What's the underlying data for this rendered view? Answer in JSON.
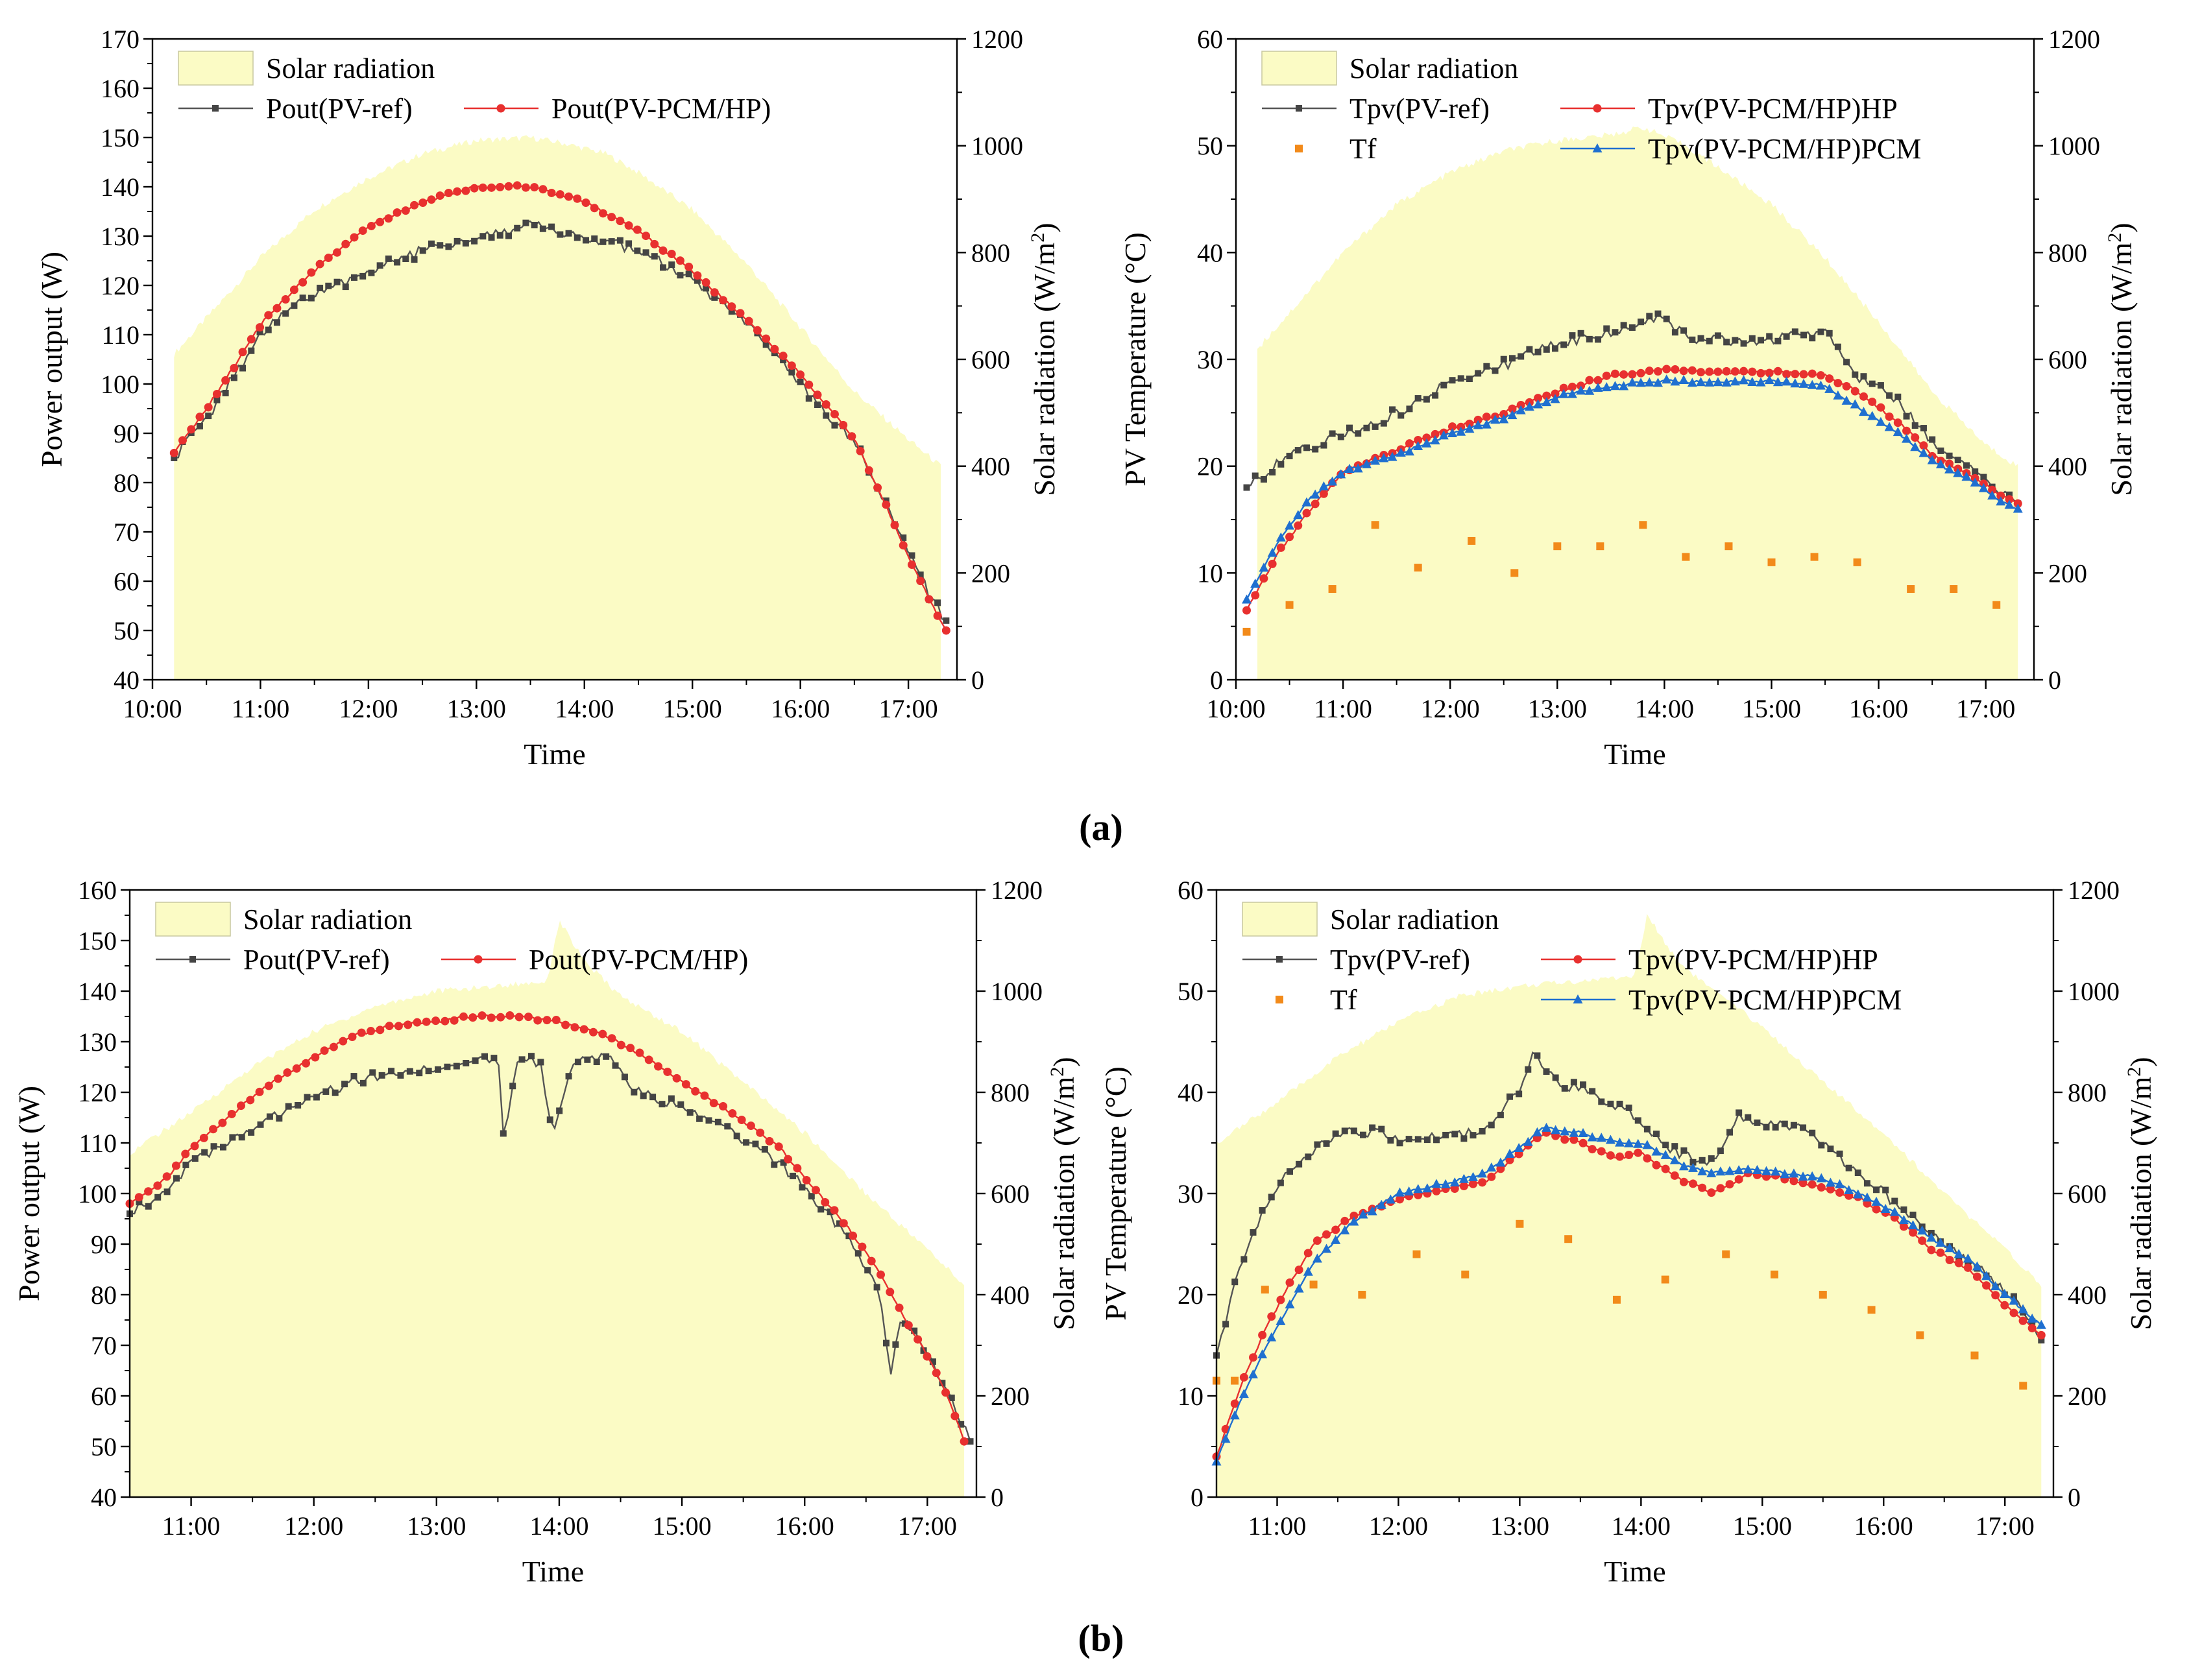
{
  "figure": {
    "panel_labels": [
      "(a)",
      "(b)"
    ]
  },
  "colors": {
    "radiation_fill": "#fbfbc5",
    "ref_line": "#555555",
    "ref_marker": "#444444",
    "hp_line": "#e8302f",
    "pcm_line": "#1f6fd0",
    "tf_marker": "#f28a1a"
  },
  "chart_data": [
    {
      "id": "a-left",
      "type": "line",
      "panel": "(a)",
      "xlabel": "Time",
      "ylabel": "Power output (W)",
      "ylabel_right": "Solar radiation (W/m2)",
      "xlim": [
        10.0,
        17.45
      ],
      "xticks": [
        "10:00",
        "11:00",
        "12:00",
        "13:00",
        "14:00",
        "15:00",
        "16:00",
        "17:00"
      ],
      "ylim": [
        40,
        170
      ],
      "yticks": [
        40,
        50,
        60,
        70,
        80,
        90,
        100,
        110,
        120,
        130,
        140,
        150,
        160,
        170
      ],
      "ylim_right": [
        0,
        1200
      ],
      "yticks_right": [
        0,
        200,
        400,
        600,
        800,
        1000,
        1200
      ],
      "radiation": {
        "name": "Solar radiation",
        "x": [
          10.2,
          10.6,
          11.0,
          11.5,
          12.0,
          12.5,
          13.0,
          13.5,
          13.8,
          14.2,
          14.5,
          15.0,
          15.5,
          16.0,
          16.5,
          17.0,
          17.3
        ],
        "values": [
          610,
          700,
          790,
          880,
          940,
          985,
          1010,
          1015,
          1005,
          985,
          950,
          880,
          780,
          660,
          540,
          450,
          400
        ]
      },
      "series": [
        {
          "name": "Pout(PV-ref)",
          "style": "ref",
          "x": [
            10.2,
            10.5,
            10.8,
            11.0,
            11.3,
            11.6,
            12.0,
            12.5,
            13.0,
            13.5,
            14.0,
            14.5,
            15.0,
            15.5,
            16.0,
            16.5,
            16.8,
            17.0,
            17.2,
            17.35
          ],
          "values": [
            85,
            93,
            103,
            110,
            116,
            119,
            123,
            127,
            130,
            132,
            130,
            127,
            121,
            112,
            100,
            88,
            76,
            66,
            57,
            52
          ]
        },
        {
          "name": "Pout(PV-PCM/HP)",
          "style": "hp",
          "x": [
            10.2,
            10.5,
            10.8,
            11.0,
            11.3,
            11.6,
            12.0,
            12.5,
            13.0,
            13.5,
            14.0,
            14.5,
            15.0,
            15.5,
            16.0,
            16.5,
            16.8,
            17.0,
            17.2,
            17.35
          ],
          "values": [
            86,
            95,
            105,
            112,
            119,
            125,
            132,
            137,
            140,
            140,
            137,
            131,
            123,
            113,
            102,
            89,
            75,
            65,
            56,
            50
          ]
        }
      ]
    },
    {
      "id": "a-right",
      "type": "line",
      "panel": "(a)",
      "xlabel": "Time",
      "ylabel": "PV Temperature (°C)",
      "ylabel_right": "Solar radiation (W/m2)",
      "xlim": [
        10.0,
        17.45
      ],
      "xticks": [
        "10:00",
        "11:00",
        "12:00",
        "13:00",
        "14:00",
        "15:00",
        "16:00",
        "17:00"
      ],
      "ylim": [
        0,
        60
      ],
      "yticks": [
        0,
        10,
        20,
        30,
        40,
        50,
        60
      ],
      "ylim_right": [
        0,
        1200
      ],
      "yticks_right": [
        0,
        200,
        400,
        600,
        800,
        1000,
        1200
      ],
      "radiation": {
        "name": "Solar radiation",
        "x": [
          10.2,
          10.6,
          11.0,
          11.5,
          12.0,
          12.5,
          13.0,
          13.5,
          13.8,
          14.2,
          14.5,
          15.0,
          15.5,
          16.0,
          16.5,
          17.0,
          17.3
        ],
        "values": [
          620,
          710,
          800,
          890,
          950,
          990,
          1010,
          1020,
          1035,
          1000,
          960,
          890,
          790,
          670,
          540,
          440,
          400
        ]
      },
      "series": [
        {
          "name": "Tpv(PV-ref)",
          "style": "ref",
          "x": [
            10.1,
            10.5,
            11.0,
            11.5,
            12.0,
            12.5,
            13.0,
            13.5,
            13.9,
            14.3,
            14.7,
            15.1,
            15.5,
            15.8,
            16.2,
            16.5,
            16.8,
            17.1,
            17.3
          ],
          "values": [
            18,
            21,
            23,
            25,
            28,
            29.5,
            31.5,
            32.5,
            34,
            32,
            31.5,
            32,
            32.5,
            28.5,
            26,
            22,
            20,
            18,
            16.5
          ]
        },
        {
          "name": "Tpv(PV-PCM/HP)HP",
          "style": "hp",
          "x": [
            10.1,
            10.4,
            10.7,
            11.0,
            11.5,
            12.0,
            12.5,
            13.0,
            13.5,
            14.0,
            14.5,
            15.0,
            15.5,
            15.8,
            16.2,
            16.5,
            16.8,
            17.1,
            17.3
          ],
          "values": [
            6.5,
            12,
            16,
            19.5,
            21.5,
            23.5,
            25,
            27,
            28.5,
            29,
            28.8,
            28.8,
            28.5,
            27,
            24,
            21,
            19.5,
            17.5,
            16.5
          ]
        },
        {
          "name": "Tpv(PV-PCM/HP)PCM",
          "style": "pcm",
          "x": [
            10.1,
            10.4,
            10.7,
            11.0,
            11.5,
            12.0,
            12.5,
            13.0,
            13.5,
            14.0,
            14.5,
            15.0,
            15.5,
            15.8,
            16.2,
            16.5,
            16.8,
            17.1,
            17.3
          ],
          "values": [
            7.5,
            13,
            17,
            19.5,
            21,
            23,
            24.5,
            26.5,
            27.5,
            28,
            27.8,
            28,
            27.5,
            25.5,
            23,
            20.5,
            19,
            17,
            16
          ]
        },
        {
          "name": "Tf",
          "style": "tf",
          "x": [
            10.1,
            10.5,
            10.9,
            11.3,
            11.7,
            12.2,
            12.6,
            13.0,
            13.4,
            13.8,
            14.2,
            14.6,
            15.0,
            15.4,
            15.8,
            16.3,
            16.7,
            17.1
          ],
          "values": [
            4.5,
            7,
            8.5,
            14.5,
            10.5,
            13,
            10,
            12.5,
            12.5,
            14.5,
            11.5,
            12.5,
            11,
            11.5,
            11,
            8.5,
            8.5,
            7
          ]
        }
      ]
    },
    {
      "id": "b-left",
      "type": "line",
      "panel": "(b)",
      "xlabel": "Time",
      "ylabel": "Power output (W)",
      "ylabel_right": "Solar radiation (W/m2)",
      "xlim": [
        10.5,
        17.4
      ],
      "xticks": [
        "11:00",
        "12:00",
        "13:00",
        "14:00",
        "15:00",
        "16:00",
        "17:00"
      ],
      "ylim": [
        40,
        160
      ],
      "yticks": [
        40,
        50,
        60,
        70,
        80,
        90,
        100,
        110,
        120,
        130,
        140,
        150,
        160
      ],
      "ylim_right": [
        0,
        1200
      ],
      "yticks_right": [
        0,
        200,
        400,
        600,
        800,
        1000,
        1200
      ],
      "radiation": {
        "name": "Solar radiation",
        "x": [
          10.5,
          11.0,
          11.5,
          12.0,
          12.5,
          13.0,
          13.5,
          13.9,
          14.0,
          14.2,
          14.5,
          15.0,
          15.5,
          16.0,
          16.5,
          17.0,
          17.3
        ],
        "values": [
          680,
          760,
          850,
          920,
          970,
          1000,
          1010,
          1020,
          1140,
          1060,
          990,
          920,
          820,
          720,
          600,
          490,
          420
        ]
      },
      "series": [
        {
          "name": "Pout(PV-ref)",
          "style": "ref",
          "x": [
            10.5,
            10.8,
            11.0,
            11.3,
            11.6,
            12.0,
            12.3,
            12.6,
            13.0,
            13.3,
            13.5,
            13.55,
            13.65,
            13.85,
            13.95,
            14.1,
            14.4,
            14.6,
            15.0,
            15.4,
            15.8,
            16.0,
            16.3,
            16.6,
            16.7,
            16.8,
            17.0,
            17.2,
            17.35
          ],
          "values": [
            96,
            101,
            106,
            110,
            114,
            119,
            122,
            124,
            125,
            126,
            127,
            109,
            127,
            126,
            111,
            126,
            127,
            121,
            117,
            112,
            106,
            101,
            93,
            82,
            65,
            76,
            68,
            59,
            51
          ]
        },
        {
          "name": "Pout(PV-PCM/HP)",
          "style": "hp",
          "x": [
            10.5,
            10.8,
            11.0,
            11.3,
            11.6,
            12.0,
            12.3,
            12.6,
            13.0,
            13.3,
            13.6,
            14.0,
            14.4,
            14.7,
            15.0,
            15.4,
            15.8,
            16.0,
            16.3,
            16.6,
            16.8,
            17.0,
            17.2,
            17.3
          ],
          "values": [
            98,
            103,
            109,
            115,
            121,
            127,
            131,
            133,
            134,
            135,
            135,
            134,
            131,
            127,
            122,
            116,
            109,
            103,
            95,
            85,
            76,
            68,
            58,
            51
          ]
        }
      ]
    },
    {
      "id": "b-right",
      "type": "line",
      "panel": "(b)",
      "xlabel": "Time",
      "ylabel": "PV Temperature (°C)",
      "ylabel_right": "Solar radiation (W/m2)",
      "xlim": [
        10.5,
        17.4
      ],
      "xticks": [
        "11:00",
        "12:00",
        "13:00",
        "14:00",
        "15:00",
        "16:00",
        "17:00"
      ],
      "ylim": [
        0,
        60
      ],
      "yticks": [
        0,
        10,
        20,
        30,
        40,
        50,
        60
      ],
      "ylim_right": [
        0,
        1200
      ],
      "yticks_right": [
        0,
        200,
        400,
        600,
        800,
        1000,
        1200
      ],
      "radiation": {
        "name": "Solar radiation",
        "x": [
          10.5,
          11.0,
          11.5,
          12.0,
          12.5,
          13.0,
          13.5,
          13.95,
          14.05,
          14.3,
          14.6,
          15.0,
          15.5,
          16.0,
          16.5,
          17.0,
          17.3
        ],
        "values": [
          700,
          780,
          870,
          940,
          990,
          1010,
          1020,
          1030,
          1150,
          1060,
          1000,
          930,
          820,
          720,
          600,
          490,
          420
        ]
      },
      "series": [
        {
          "name": "Tpv(PV-ref)",
          "style": "ref",
          "x": [
            10.5,
            10.7,
            10.9,
            11.2,
            11.5,
            11.8,
            12.0,
            12.4,
            12.7,
            13.0,
            13.1,
            13.3,
            13.6,
            13.9,
            14.1,
            14.3,
            14.6,
            14.8,
            15.0,
            15.3,
            15.6,
            15.9,
            16.2,
            16.5,
            16.8,
            17.1,
            17.3
          ],
          "values": [
            14,
            23,
            29,
            33.5,
            36,
            36,
            35.5,
            35.5,
            36.5,
            40,
            44,
            41,
            40,
            38,
            36,
            34,
            33,
            37.5,
            37,
            36.5,
            34,
            31,
            28,
            25,
            22.5,
            19,
            15.5
          ]
        },
        {
          "name": "Tpv(PV-PCM/HP)HP",
          "style": "hp",
          "x": [
            10.5,
            10.7,
            10.9,
            11.1,
            11.3,
            11.6,
            12.0,
            12.4,
            12.7,
            13.0,
            13.2,
            13.5,
            13.8,
            14.0,
            14.3,
            14.6,
            14.9,
            15.2,
            15.5,
            15.8,
            16.1,
            16.4,
            16.7,
            17.0,
            17.3
          ],
          "values": [
            4,
            11,
            16.5,
            21,
            25,
            27.5,
            29.5,
            30.5,
            31,
            34,
            36,
            35,
            33.5,
            34,
            31.5,
            30,
            32,
            31.5,
            30.5,
            29.5,
            27.5,
            24.5,
            22.5,
            19,
            16
          ]
        },
        {
          "name": "Tpv(PV-PCM/HP)PCM",
          "style": "pcm",
          "x": [
            10.5,
            10.7,
            10.9,
            11.1,
            11.3,
            11.6,
            12.0,
            12.4,
            12.7,
            13.0,
            13.2,
            13.5,
            13.8,
            14.0,
            14.3,
            14.6,
            14.9,
            15.2,
            15.5,
            15.8,
            16.1,
            16.4,
            16.7,
            17.0,
            17.3
          ],
          "values": [
            3.5,
            9.5,
            14.5,
            19,
            23,
            27,
            30,
            31,
            32,
            34.5,
            36.5,
            36,
            35,
            35,
            33,
            32,
            32.5,
            32,
            31.5,
            30,
            28,
            25.5,
            23.5,
            20,
            17
          ]
        },
        {
          "name": "Tf",
          "style": "tf",
          "x": [
            10.5,
            10.65,
            10.9,
            11.3,
            11.7,
            12.15,
            12.55,
            13.0,
            13.4,
            13.8,
            14.2,
            14.7,
            15.1,
            15.5,
            15.9,
            16.3,
            16.75,
            17.15
          ],
          "values": [
            11.5,
            11.5,
            20.5,
            21,
            20,
            24,
            22,
            27,
            25.5,
            19.5,
            21.5,
            24,
            22,
            20,
            18.5,
            16,
            14,
            11
          ]
        }
      ]
    }
  ],
  "legends": [
    {
      "id": "a-left",
      "cols": 2,
      "items": [
        {
          "label": "Solar radiation",
          "kind": "fill"
        },
        {
          "label": "Pout(PV-ref)",
          "kind": "ref"
        },
        {
          "label": "Pout(PV-PCM/HP)",
          "kind": "hp"
        }
      ]
    },
    {
      "id": "a-right",
      "cols": 2,
      "items": [
        {
          "label": "Solar radiation",
          "kind": "fill"
        },
        {
          "label": "Tpv(PV-ref)",
          "kind": "ref"
        },
        {
          "label": "Tpv(PV-PCM/HP)HP",
          "kind": "hp"
        },
        {
          "label": "Tf",
          "kind": "tf"
        },
        {
          "label": "Tpv(PV-PCM/HP)PCM",
          "kind": "pcm"
        }
      ]
    },
    {
      "id": "b-left",
      "cols": 2,
      "items": [
        {
          "label": "Solar radiation",
          "kind": "fill"
        },
        {
          "label": "Pout(PV-ref)",
          "kind": "ref"
        },
        {
          "label": "Pout(PV-PCM/HP)",
          "kind": "hp"
        }
      ]
    },
    {
      "id": "b-right",
      "cols": 2,
      "items": [
        {
          "label": "Solar radiation",
          "kind": "fill"
        },
        {
          "label": "Tpv(PV-ref)",
          "kind": "ref"
        },
        {
          "label": "Tpv(PV-PCM/HP)HP",
          "kind": "hp"
        },
        {
          "label": "Tf",
          "kind": "tf"
        },
        {
          "label": "Tpv(PV-PCM/HP)PCM",
          "kind": "pcm"
        }
      ]
    }
  ]
}
